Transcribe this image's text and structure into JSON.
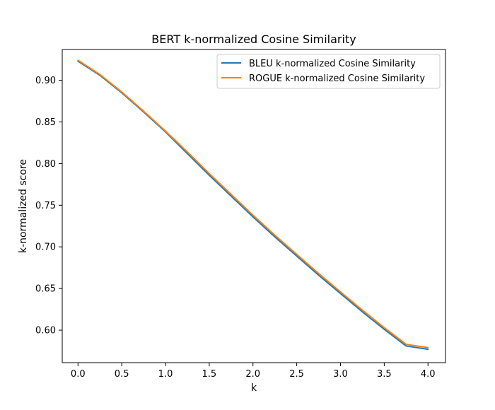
{
  "chart_data": {
    "type": "line",
    "title": "BERT k-normalized Cosine Similarity",
    "xlabel": "k",
    "ylabel": "k-normalized score",
    "xlim": [
      -0.18,
      4.2
    ],
    "ylim": [
      0.561,
      0.937
    ],
    "xticks": [
      0.0,
      0.5,
      1.0,
      1.5,
      2.0,
      2.5,
      3.0,
      3.5,
      4.0
    ],
    "xtick_labels": [
      "0.0",
      "0.5",
      "1.0",
      "1.5",
      "2.0",
      "2.5",
      "3.0",
      "3.5",
      "4.0"
    ],
    "yticks": [
      0.6,
      0.65,
      0.7,
      0.75,
      0.8,
      0.85,
      0.9
    ],
    "ytick_labels": [
      "0.60",
      "0.65",
      "0.70",
      "0.75",
      "0.80",
      "0.85",
      "0.90"
    ],
    "grid": false,
    "legend_position": "top-right",
    "x": [
      0.0,
      0.25,
      0.5,
      0.75,
      1.0,
      1.25,
      1.5,
      1.75,
      2.0,
      2.25,
      2.5,
      2.75,
      3.0,
      3.25,
      3.5,
      3.75,
      4.0
    ],
    "series": [
      {
        "name": "BLEU k-normalized Cosine Similarity",
        "color": "#1f77b4",
        "values": [
          0.923,
          0.906,
          0.885,
          0.862,
          0.838,
          0.812,
          0.786,
          0.761,
          0.736,
          0.712,
          0.689,
          0.666,
          0.644,
          0.622,
          0.601,
          0.581,
          0.577
        ]
      },
      {
        "name": "ROGUE k-normalized Cosine Similarity",
        "color": "#ff7f0e",
        "values": [
          0.924,
          0.907,
          0.886,
          0.863,
          0.839,
          0.814,
          0.788,
          0.763,
          0.738,
          0.714,
          0.691,
          0.668,
          0.646,
          0.624,
          0.603,
          0.583,
          0.579
        ]
      }
    ]
  }
}
